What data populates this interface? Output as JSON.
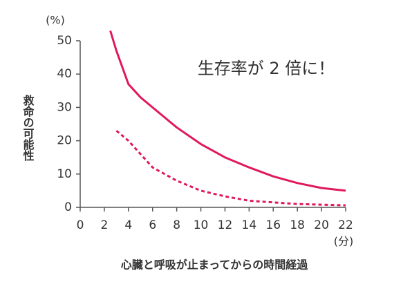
{
  "chart_data": {
    "type": "line",
    "y_unit": "(%)",
    "x_unit": "(分)",
    "ylabel": "救命の可能性",
    "xlabel": "心臓と呼吸が止まってからの時間経過",
    "annotation": "生存率が 2 倍に！",
    "annotation_color": "#e8000f",
    "xlim": [
      0,
      22
    ],
    "xticks": [
      0,
      2,
      4,
      6,
      8,
      10,
      12,
      14,
      16,
      18,
      20,
      22
    ],
    "ylim": [
      0,
      50
    ],
    "yticks": [
      0,
      10,
      20,
      30,
      40,
      50
    ],
    "series": [
      {
        "color": "#e0195a",
        "style": "solid",
        "x": [
          2.5,
          3,
          4,
          5,
          6,
          8,
          10,
          12,
          14,
          16,
          18,
          20,
          22
        ],
        "values": [
          53,
          47,
          37,
          33,
          30,
          24,
          19,
          15,
          12,
          9.3,
          7.3,
          5.8,
          5
        ]
      },
      {
        "color": "#e0195a",
        "style": "dashed",
        "x": [
          3,
          4,
          6,
          8,
          10,
          12,
          14,
          16,
          18,
          20,
          22
        ],
        "values": [
          23,
          20,
          12,
          8,
          5,
          3.3,
          2,
          1.5,
          1,
          0.8,
          0.6
        ]
      }
    ]
  }
}
